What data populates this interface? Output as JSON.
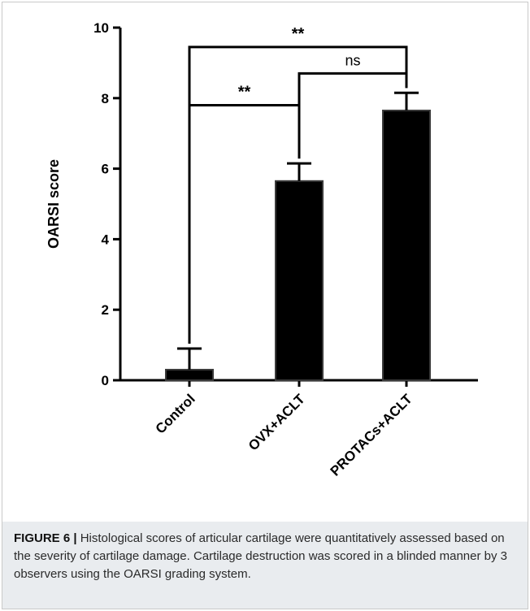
{
  "chart_data": {
    "type": "bar",
    "categories": [
      "Control",
      "OVX+ACLT",
      "PROTACs+ACLT"
    ],
    "values": [
      0.3,
      5.65,
      7.65
    ],
    "error_upper": [
      0.6,
      0.5,
      0.5
    ],
    "ylabel": "OARSI score",
    "xlabel": "",
    "ylim": [
      0,
      10
    ],
    "yticks": [
      0,
      2,
      4,
      6,
      8,
      10
    ],
    "bar_color": "#000000",
    "grid": false,
    "significance": [
      {
        "from": 0,
        "to": 2,
        "y": 9.45,
        "label": "**"
      },
      {
        "from": 1,
        "to": 2,
        "y": 8.7,
        "label": "ns"
      },
      {
        "from": 0,
        "to": 1,
        "y": 7.8,
        "label": "**"
      }
    ]
  },
  "caption": {
    "label": "FIGURE 6 |",
    "text": " Histological scores of articular cartilage were quantitatively assessed based on the severity of cartilage damage. Cartilage destruction was scored in a blinded manner by 3 observers using the OARSI grading system."
  }
}
